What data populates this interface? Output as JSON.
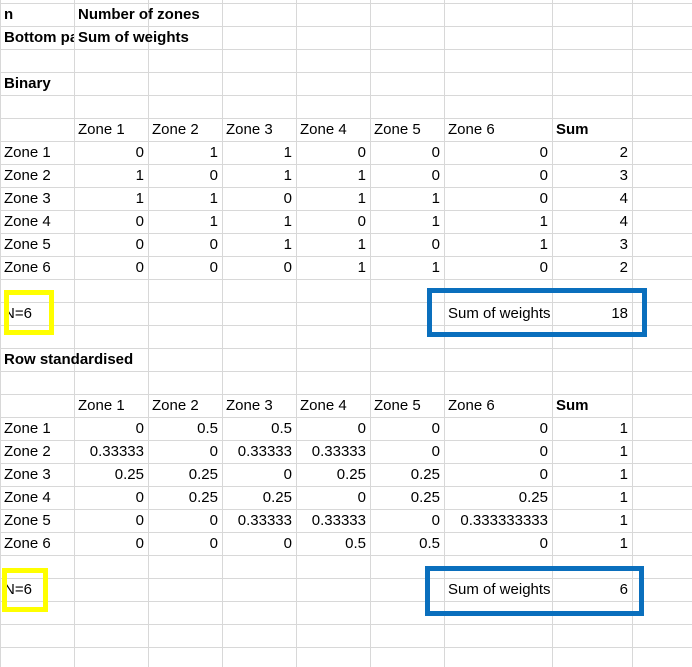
{
  "header": {
    "label_n": "n",
    "label_n_desc": "Number of zones",
    "label_bottom": "Bottom pa",
    "label_bottom_desc": "Sum of weights"
  },
  "binary": {
    "title": "Binary",
    "columns": [
      "Zone 1",
      "Zone 2",
      "Zone 3",
      "Zone 4",
      "Zone 5",
      "Zone 6",
      "Sum"
    ],
    "rows": [
      {
        "label": "Zone 1",
        "values": [
          "0",
          "1",
          "1",
          "0",
          "0",
          "0",
          "2"
        ]
      },
      {
        "label": "Zone 2",
        "values": [
          "1",
          "0",
          "1",
          "1",
          "0",
          "0",
          "3"
        ]
      },
      {
        "label": "Zone 3",
        "values": [
          "1",
          "1",
          "0",
          "1",
          "1",
          "0",
          "4"
        ]
      },
      {
        "label": "Zone 4",
        "values": [
          "0",
          "1",
          "1",
          "0",
          "1",
          "1",
          "4"
        ]
      },
      {
        "label": "Zone 5",
        "values": [
          "0",
          "0",
          "1",
          "1",
          "0",
          "1",
          "3"
        ]
      },
      {
        "label": "Zone 6",
        "values": [
          "0",
          "0",
          "0",
          "1",
          "1",
          "0",
          "2"
        ]
      }
    ],
    "n_label": "N=6",
    "sum_label": "Sum of weights",
    "sum_value": "18"
  },
  "row_std": {
    "title": "Row standardised",
    "columns": [
      "Zone 1",
      "Zone 2",
      "Zone 3",
      "Zone 4",
      "Zone 5",
      "Zone 6",
      "Sum"
    ],
    "rows": [
      {
        "label": "Zone 1",
        "values": [
          "0",
          "0.5",
          "0.5",
          "0",
          "0",
          "0",
          "1"
        ]
      },
      {
        "label": "Zone 2",
        "values": [
          "0.33333",
          "0",
          "0.33333",
          "0.33333",
          "0",
          "0",
          "1"
        ]
      },
      {
        "label": "Zone 3",
        "values": [
          "0.25",
          "0.25",
          "0",
          "0.25",
          "0.25",
          "0",
          "1"
        ]
      },
      {
        "label": "Zone 4",
        "values": [
          "0",
          "0.25",
          "0.25",
          "0",
          "0.25",
          "0.25",
          "1"
        ]
      },
      {
        "label": "Zone 5",
        "values": [
          "0",
          "0",
          "0.33333",
          "0.33333",
          "0",
          "0.333333333",
          "1"
        ]
      },
      {
        "label": "Zone 6",
        "values": [
          "0",
          "0",
          "0",
          "0.5",
          "0.5",
          "0",
          "1"
        ]
      }
    ],
    "n_label": "N=6",
    "sum_label": "Sum of weights",
    "sum_value": "6"
  },
  "colors": {
    "gridline": "#d8d8d8",
    "highlight_yellow": "#ffff00",
    "highlight_blue": "#0a6fbd"
  }
}
